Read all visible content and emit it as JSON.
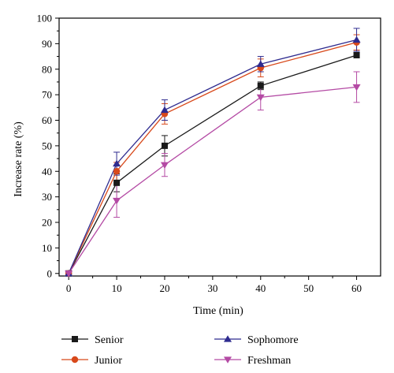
{
  "chart_data": {
    "type": "line",
    "title": "",
    "xlabel": "Time (min)",
    "ylabel": "Increase rate (%)",
    "xlim": [
      -2,
      65
    ],
    "ylim": [
      -1,
      100
    ],
    "xticks": [
      0,
      10,
      20,
      30,
      40,
      50,
      60
    ],
    "yticks": [
      0,
      10,
      20,
      30,
      40,
      50,
      60,
      70,
      80,
      90,
      100
    ],
    "grid": false,
    "legend_position": "bottom",
    "x": [
      0,
      10,
      20,
      40,
      60
    ],
    "series": [
      {
        "name": "Senior",
        "color": "#1a1a1a",
        "marker": "square",
        "values": [
          0,
          35.5,
          50,
          73.5,
          85.5
        ],
        "errors": [
          0,
          3.5,
          4,
          1.5,
          1
        ]
      },
      {
        "name": "Junior",
        "color": "#d8491b",
        "marker": "circle",
        "values": [
          0,
          40,
          62.5,
          80.5,
          90.5
        ],
        "errors": [
          0,
          3.5,
          4,
          3.5,
          3
        ]
      },
      {
        "name": "Sophomore",
        "color": "#2e2b8f",
        "marker": "triangle-up",
        "values": [
          0,
          43,
          64,
          82,
          91.5
        ],
        "errors": [
          0,
          4.5,
          4,
          3,
          4.5
        ]
      },
      {
        "name": "Freshman",
        "color": "#b44aa4",
        "marker": "triangle-down",
        "values": [
          0,
          28.5,
          42.5,
          69,
          73
        ],
        "errors": [
          0,
          6.5,
          4.5,
          5,
          6
        ]
      }
    ]
  }
}
